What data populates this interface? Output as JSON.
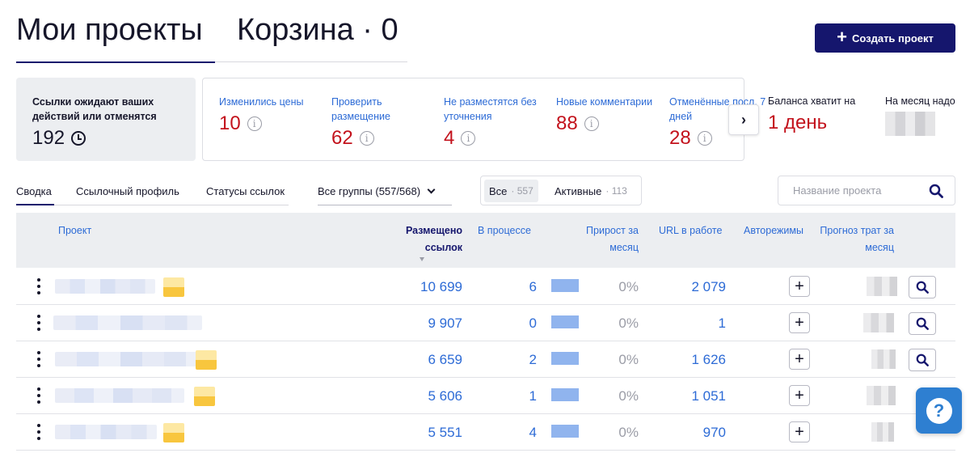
{
  "header": {
    "title": "Мои проекты",
    "trash": "Корзина · 0",
    "create_button": "Создать проект"
  },
  "summary": {
    "awaiting_label": "Ссылки ожидают ваших действий или отменятся",
    "awaiting_value": "192",
    "stats": [
      {
        "label": "Изменились цены",
        "value": "10"
      },
      {
        "label": "Проверить размещение",
        "value": "62"
      },
      {
        "label": "Не разместятся без уточнения",
        "value": "4"
      },
      {
        "label": "Новые комментарии",
        "value": "88"
      },
      {
        "label": "Отменённые посл. 7 дней",
        "value": "28"
      }
    ],
    "balance_label": "Баланса хватит на",
    "balance_value": "1 день",
    "month_label": "На месяц надо"
  },
  "tabs": [
    "Сводка",
    "Ссылочный профиль",
    "Статусы ссылок"
  ],
  "groups_select": "Все группы (557/568)",
  "filter": {
    "all_label": "Все",
    "all_count": "· 557",
    "active_label": "Активные",
    "active_count": "· 113"
  },
  "search": {
    "placeholder": "Название проекта"
  },
  "table": {
    "headers": {
      "project": "Проект",
      "placed": "Размещено ссылок",
      "in_progress": "В процессе",
      "growth": "Прирост за месяц",
      "urls": "URL в работе",
      "auto": "Авторежимы",
      "forecast": "Прогноз трат за месяц"
    },
    "rows": [
      {
        "placed": "10 699",
        "in_progress": "6",
        "growth": "0%",
        "urls": "2 079"
      },
      {
        "placed": "9 907",
        "in_progress": "0",
        "growth": "0%",
        "urls": "1"
      },
      {
        "placed": "6 659",
        "in_progress": "2",
        "growth": "0%",
        "urls": "1 626"
      },
      {
        "placed": "5 606",
        "in_progress": "1",
        "growth": "0%",
        "urls": "1 051"
      },
      {
        "placed": "5 551",
        "in_progress": "4",
        "growth": "0%",
        "urls": "970"
      }
    ]
  },
  "colors": {
    "brand": "#15166d",
    "link": "#2d6bd6",
    "alert": "#c3121c",
    "bar": "#90b4ee",
    "help": "#2e7fd1"
  },
  "icons": [
    "clock-icon",
    "info-icon",
    "chevron-right-icon",
    "chevron-down-icon",
    "search-icon",
    "plus-icon",
    "more-vertical-icon",
    "help-icon"
  ]
}
